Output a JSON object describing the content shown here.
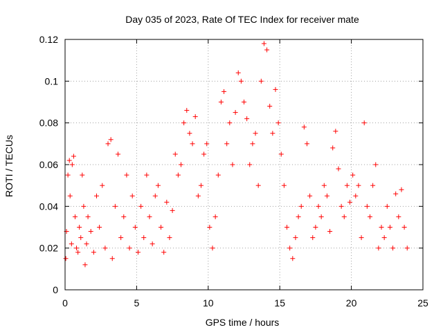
{
  "chart_data": {
    "type": "scatter",
    "title": "Day 035 of 2023, Rate Of TEC Index for receiver mate",
    "xlabel": "GPS time / hours",
    "ylabel": "ROTI / TECUs",
    "xlim": [
      0,
      25
    ],
    "ylim": [
      0,
      0.12
    ],
    "xticks": [
      "0",
      "5",
      "10",
      "15",
      "20",
      "25"
    ],
    "xtick_values": [
      0,
      5,
      10,
      15,
      20,
      25
    ],
    "yticks": [
      "0",
      "0.02",
      "0.04",
      "0.06",
      "0.08",
      "0.1",
      "0.12"
    ],
    "ytick_values": [
      0,
      0.02,
      0.04,
      0.06,
      0.08,
      0.1,
      0.12
    ],
    "grid": true,
    "marker": "plus",
    "color": "#ff0000",
    "series": [
      {
        "x": [
          0.05,
          0.1,
          0.2,
          0.3,
          0.35,
          0.45,
          0.5,
          0.6,
          0.7,
          0.8,
          0.9,
          1.0,
          1.1,
          1.2,
          1.3,
          1.4,
          1.5,
          1.6,
          1.8,
          2.0,
          2.2,
          2.4,
          2.6,
          2.8,
          3.0,
          3.2,
          3.3,
          3.5,
          3.7,
          3.9,
          4.1,
          4.3,
          4.5,
          4.7,
          4.9,
          5.1,
          5.3,
          5.5,
          5.7,
          5.9,
          6.1,
          6.3,
          6.5,
          6.7,
          6.9,
          7.1,
          7.3,
          7.5,
          7.7,
          7.9,
          8.1,
          8.3,
          8.5,
          8.7,
          8.9,
          9.1,
          9.3,
          9.5,
          9.7,
          9.9,
          10.1,
          10.3,
          10.5,
          10.7,
          10.9,
          11.1,
          11.3,
          11.5,
          11.7,
          11.9,
          12.1,
          12.3,
          12.5,
          12.7,
          12.9,
          13.1,
          13.3,
          13.5,
          13.7,
          13.9,
          14.1,
          14.3,
          14.5,
          14.7,
          14.9,
          15.1,
          15.3,
          15.5,
          15.7,
          15.9,
          16.1,
          16.3,
          16.5,
          16.7,
          16.9,
          17.1,
          17.3,
          17.5,
          17.7,
          17.9,
          18.1,
          18.3,
          18.5,
          18.7,
          18.9,
          19.1,
          19.3,
          19.5,
          19.7,
          19.9,
          20.1,
          20.3,
          20.5,
          20.7,
          20.9,
          21.1,
          21.3,
          21.5,
          21.7,
          21.9,
          22.1,
          22.3,
          22.5,
          22.7,
          22.9,
          23.1,
          23.3,
          23.5,
          23.7,
          23.9
        ],
        "y": [
          0.015,
          0.028,
          0.055,
          0.062,
          0.045,
          0.022,
          0.06,
          0.064,
          0.035,
          0.02,
          0.018,
          0.03,
          0.025,
          0.055,
          0.04,
          0.012,
          0.022,
          0.035,
          0.028,
          0.018,
          0.045,
          0.03,
          0.05,
          0.02,
          0.07,
          0.072,
          0.015,
          0.04,
          0.065,
          0.025,
          0.035,
          0.055,
          0.02,
          0.045,
          0.03,
          0.018,
          0.04,
          0.025,
          0.055,
          0.035,
          0.022,
          0.045,
          0.05,
          0.03,
          0.018,
          0.042,
          0.025,
          0.038,
          0.065,
          0.055,
          0.06,
          0.08,
          0.086,
          0.075,
          0.07,
          0.083,
          0.045,
          0.05,
          0.065,
          0.07,
          0.03,
          0.02,
          0.035,
          0.055,
          0.09,
          0.095,
          0.07,
          0.08,
          0.06,
          0.085,
          0.104,
          0.1,
          0.09,
          0.082,
          0.06,
          0.07,
          0.075,
          0.05,
          0.1,
          0.118,
          0.115,
          0.088,
          0.075,
          0.096,
          0.08,
          0.065,
          0.05,
          0.03,
          0.02,
          0.015,
          0.025,
          0.035,
          0.04,
          0.078,
          0.07,
          0.045,
          0.025,
          0.03,
          0.04,
          0.035,
          0.05,
          0.045,
          0.028,
          0.068,
          0.076,
          0.058,
          0.04,
          0.035,
          0.05,
          0.042,
          0.055,
          0.045,
          0.05,
          0.025,
          0.08,
          0.04,
          0.035,
          0.05,
          0.06,
          0.02,
          0.03,
          0.025,
          0.04,
          0.03,
          0.02,
          0.046,
          0.035,
          0.048,
          0.03,
          0.02
        ]
      }
    ]
  }
}
